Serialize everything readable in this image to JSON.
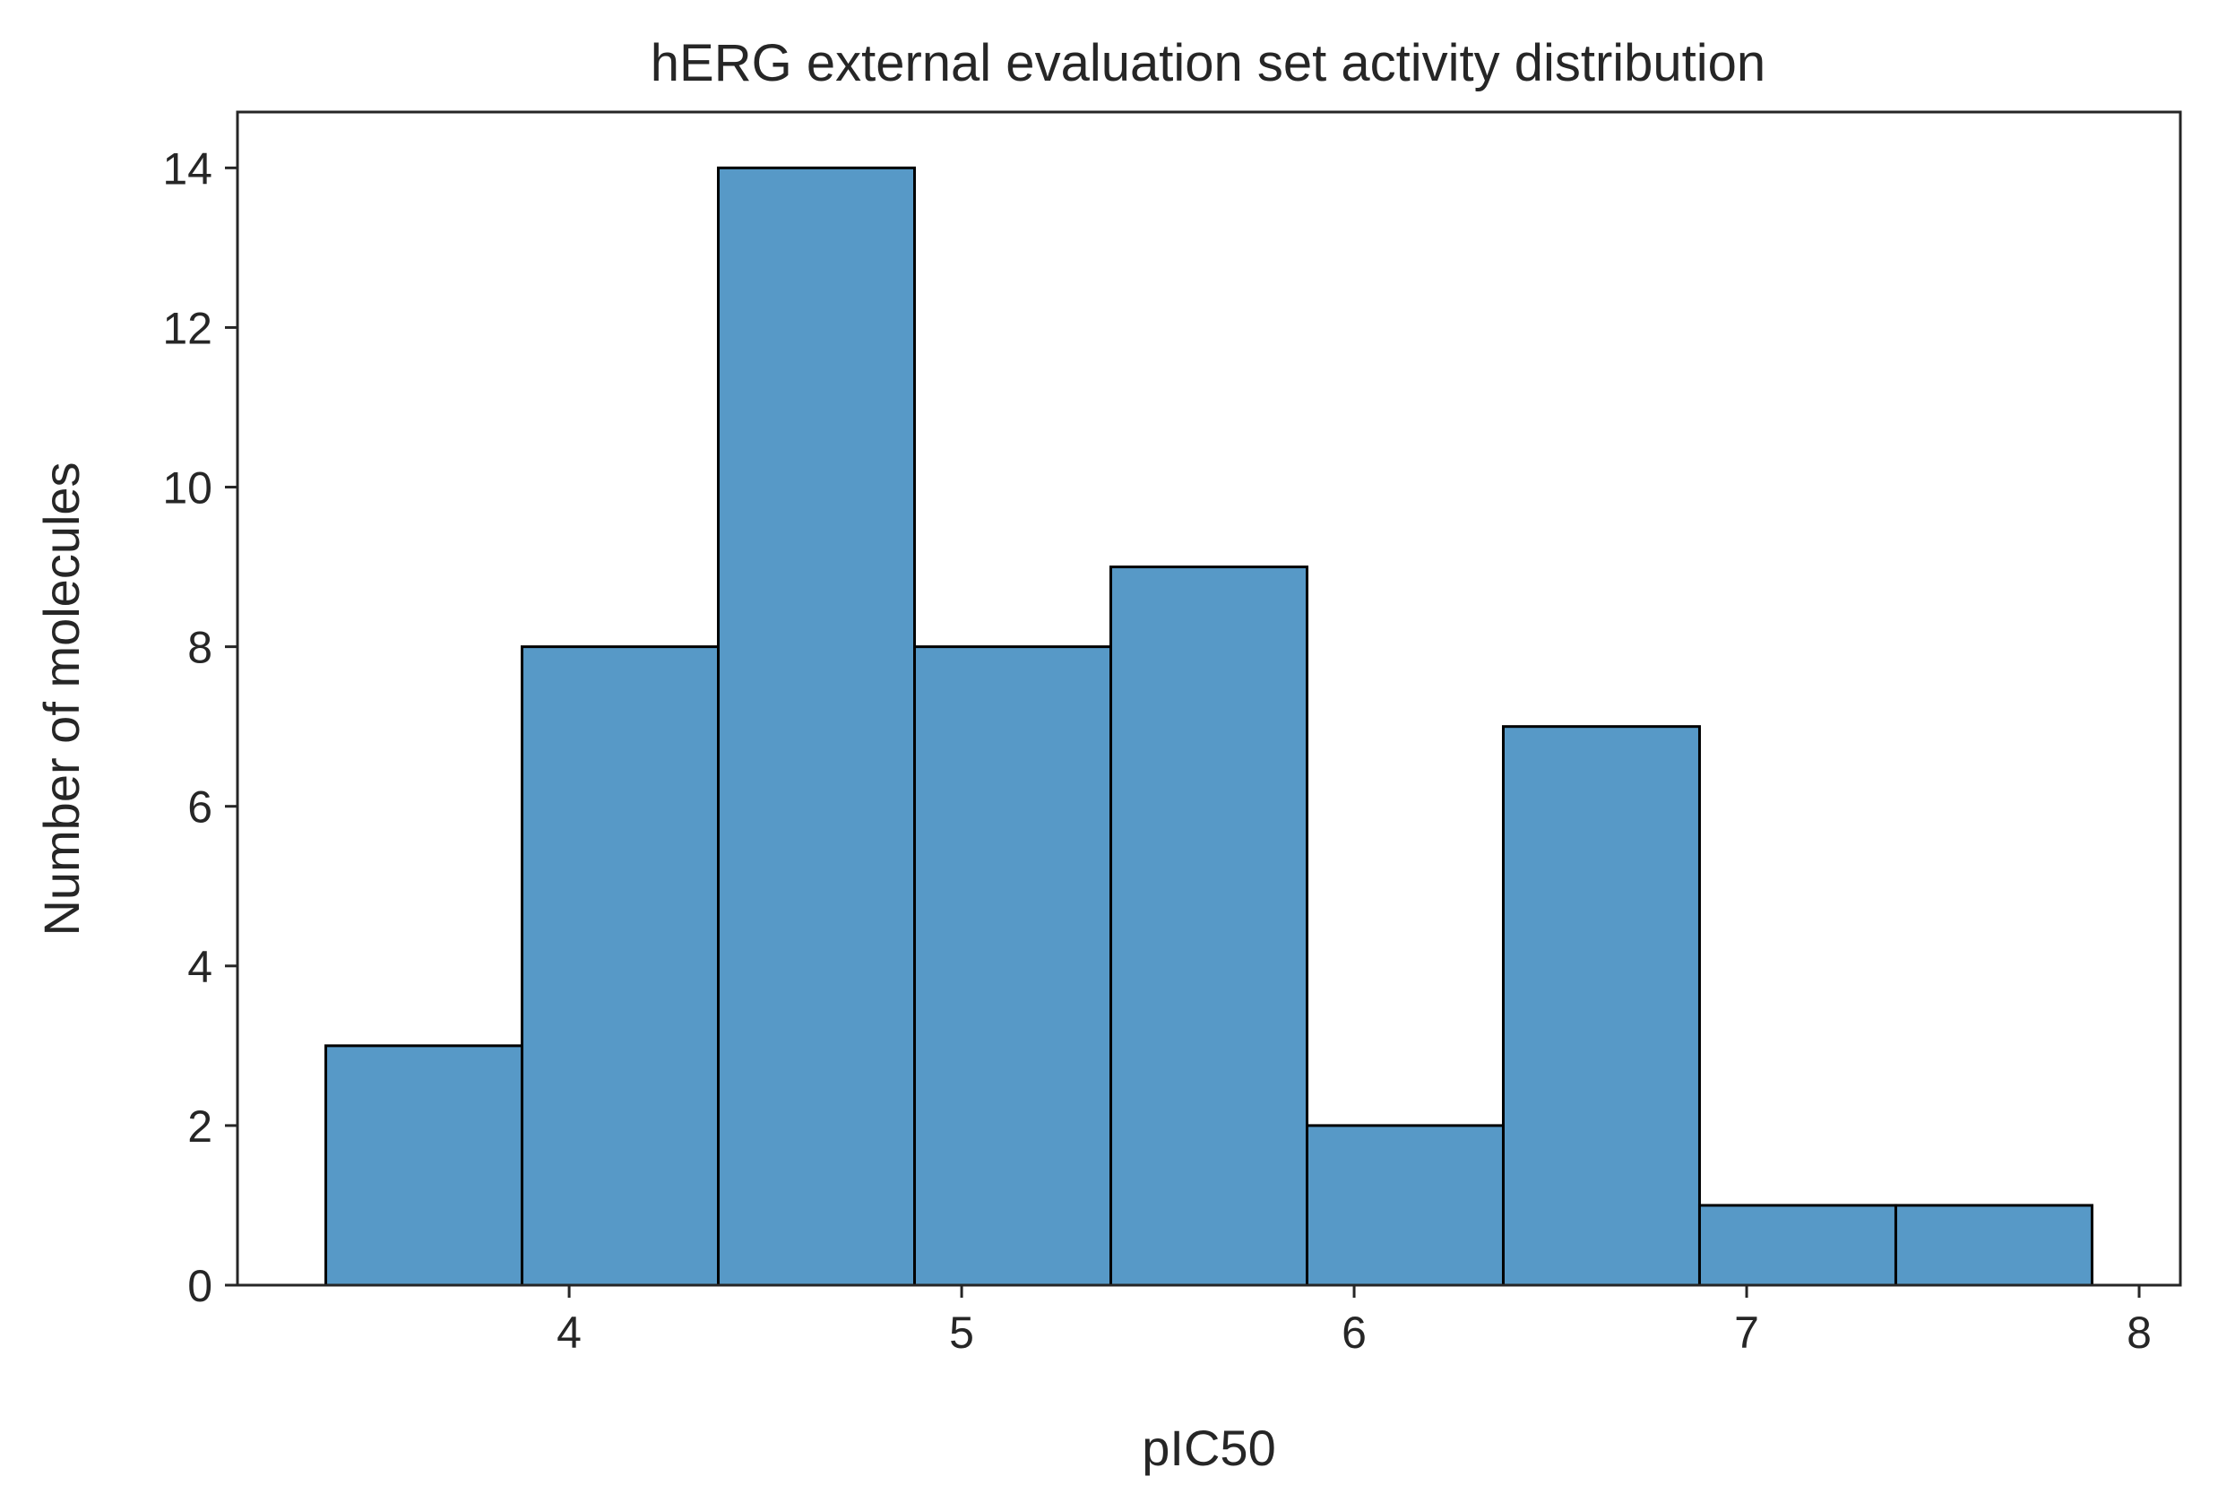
{
  "chart_data": {
    "type": "bar",
    "title": "hERG external evaluation set activity distribution",
    "xlabel": "pIC50",
    "ylabel": "Number of molecules",
    "bins": [
      {
        "x0": 3.38,
        "x1": 3.88,
        "count": 3
      },
      {
        "x0": 3.88,
        "x1": 4.38,
        "count": 8
      },
      {
        "x0": 4.38,
        "x1": 4.88,
        "count": 14
      },
      {
        "x0": 4.88,
        "x1": 5.38,
        "count": 8
      },
      {
        "x0": 5.38,
        "x1": 5.88,
        "count": 9
      },
      {
        "x0": 5.88,
        "x1": 6.38,
        "count": 2
      },
      {
        "x0": 6.38,
        "x1": 6.88,
        "count": 7
      },
      {
        "x0": 6.88,
        "x1": 7.38,
        "count": 1
      },
      {
        "x0": 7.38,
        "x1": 7.88,
        "count": 1
      }
    ],
    "xticks": [
      4,
      5,
      6,
      7,
      8
    ],
    "yticks": [
      0,
      2,
      4,
      6,
      8,
      10,
      12,
      14
    ],
    "xlim": [
      3.155,
      8.105
    ],
    "ylim": [
      0,
      14.7
    ],
    "grid": false,
    "colors": {
      "bar_fill": "#5799c7",
      "bar_edge": "#000000",
      "axes": "#262626"
    }
  }
}
